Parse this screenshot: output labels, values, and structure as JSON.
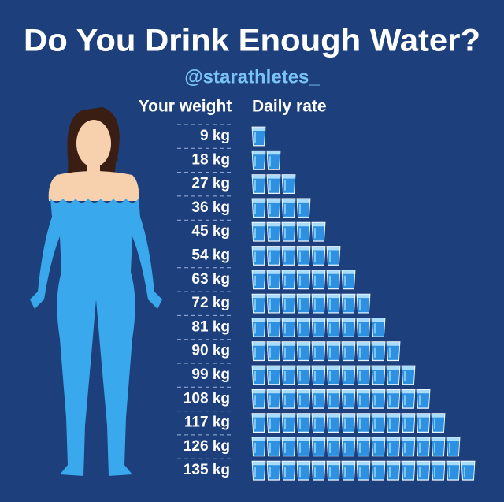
{
  "title": "Do You Drink Enough Water?",
  "handle": "@starathletes_",
  "table": {
    "headers": [
      "Your weight",
      "Daily rate"
    ],
    "rows": [
      {
        "weight": "9 kg",
        "glasses": 1
      },
      {
        "weight": "18 kg",
        "glasses": 2
      },
      {
        "weight": "27 kg",
        "glasses": 3
      },
      {
        "weight": "36 kg",
        "glasses": 4
      },
      {
        "weight": "45 kg",
        "glasses": 5
      },
      {
        "weight": "54 kg",
        "glasses": 6
      },
      {
        "weight": "63 kg",
        "glasses": 7
      },
      {
        "weight": "72 kg",
        "glasses": 8
      },
      {
        "weight": "81 kg",
        "glasses": 9
      },
      {
        "weight": "90 kg",
        "glasses": 10
      },
      {
        "weight": "99 kg",
        "glasses": 11
      },
      {
        "weight": "108 kg",
        "glasses": 12
      },
      {
        "weight": "117 kg",
        "glasses": 13
      },
      {
        "weight": "126 kg",
        "glasses": 14
      },
      {
        "weight": "135 kg",
        "glasses": 15
      }
    ]
  }
}
